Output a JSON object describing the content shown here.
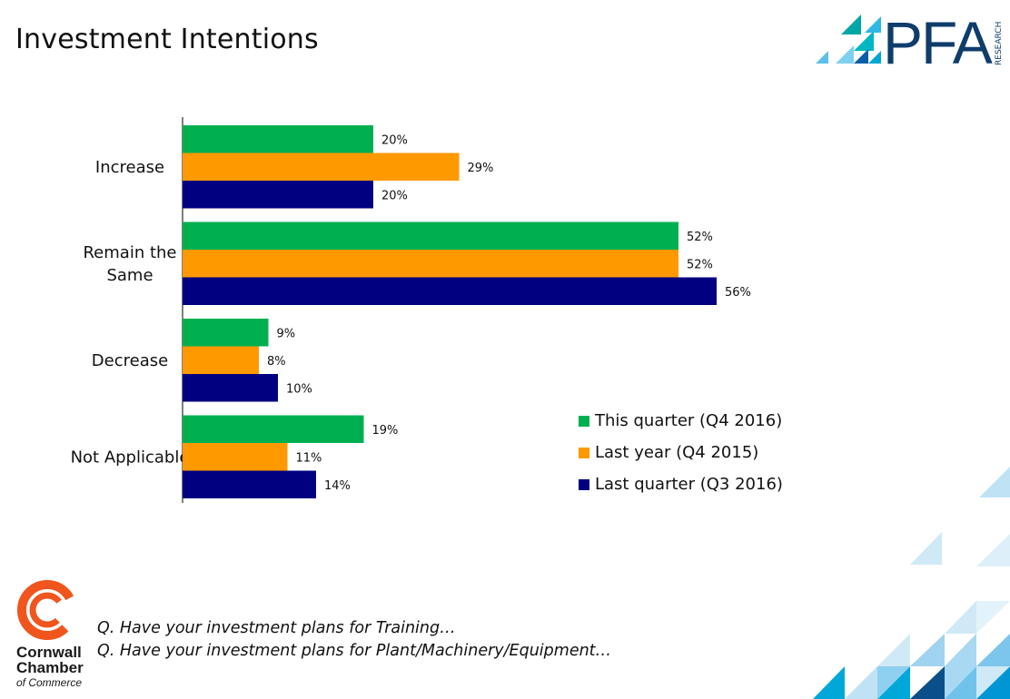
{
  "title": "Investment Intentions",
  "pfa_logo": {
    "text": "PFA",
    "subtext": "RESEARCH"
  },
  "cornwall_logo": {
    "line1": "Cornwall",
    "line2": "Chamber",
    "line3": "of Commerce"
  },
  "questions": [
    "Q. Have your investment plans for Training…",
    "Q. Have your investment plans for Plant/Machinery/Equipment…"
  ],
  "colors": {
    "this_quarter": "#00B050",
    "last_year": "#FF9900",
    "last_quarter": "#000080"
  },
  "chart_data": {
    "type": "bar",
    "orientation": "horizontal",
    "categories": [
      "Increase",
      "Remain the Same",
      "Decrease",
      "Not Applicable"
    ],
    "series": [
      {
        "name": "This quarter (Q4 2016)",
        "values": [
          20,
          52,
          9,
          19
        ],
        "labels": [
          "20%",
          "52%",
          "9%",
          "19%"
        ]
      },
      {
        "name": "Last year (Q4 2015)",
        "values": [
          29,
          52,
          8,
          11
        ],
        "labels": [
          "29%",
          "52%",
          "8%",
          "11%"
        ]
      },
      {
        "name": "Last quarter (Q3 2016)",
        "values": [
          20,
          56,
          10,
          14
        ],
        "labels": [
          "20%",
          "56%",
          "10%",
          "14%"
        ]
      }
    ],
    "xlim": [
      0,
      100
    ],
    "unit": "%",
    "grid": false,
    "legend_position": "right"
  }
}
